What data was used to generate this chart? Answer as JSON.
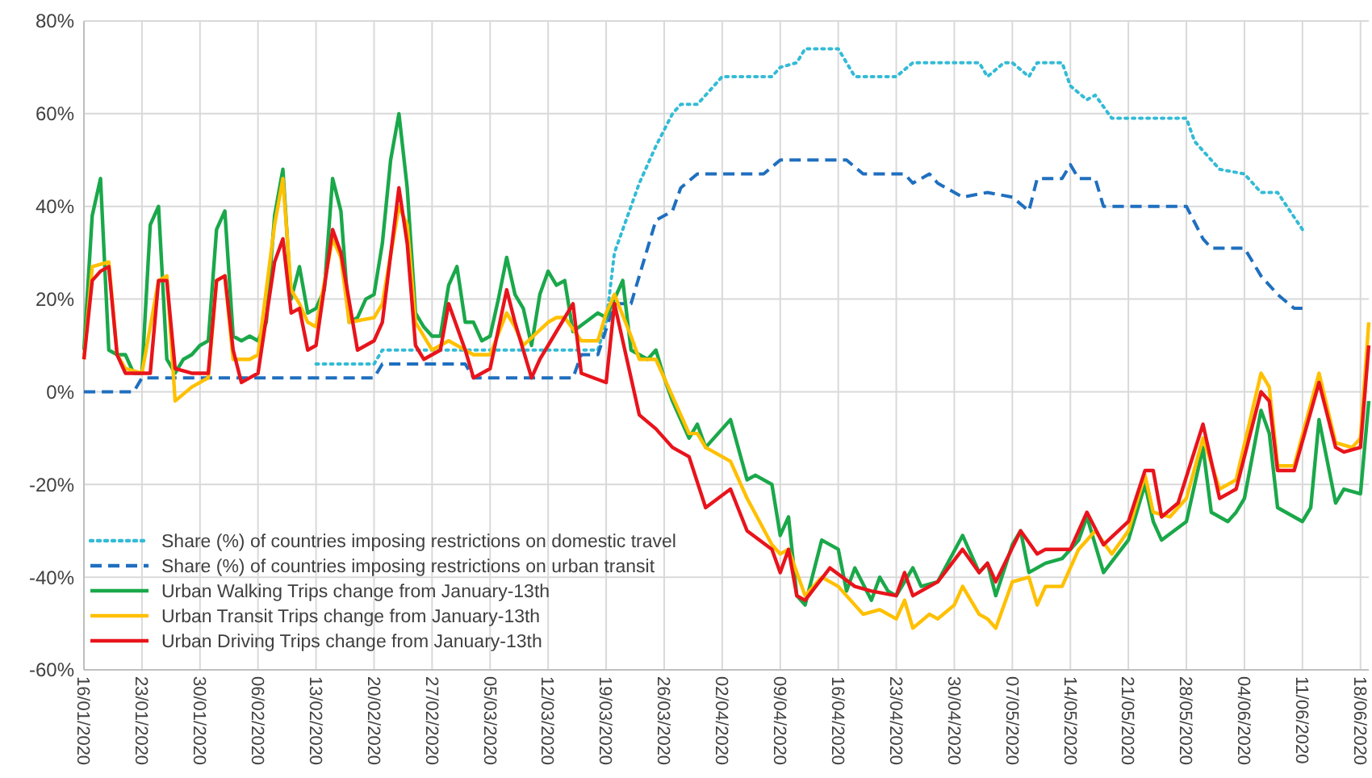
{
  "chart_data": {
    "type": "line",
    "xlim": [
      "2020-01-16",
      "2020-06-19"
    ],
    "ylim": [
      -60,
      80
    ],
    "xticks": [
      {
        "value": "2020-01-16",
        "label": "16/01/2020"
      },
      {
        "value": "2020-01-23",
        "label": "23/01/2020"
      },
      {
        "value": "2020-01-30",
        "label": "30/01/2020"
      },
      {
        "value": "2020-02-06",
        "label": "06/02/2020"
      },
      {
        "value": "2020-02-13",
        "label": "13/02/2020"
      },
      {
        "value": "2020-02-20",
        "label": "20/02/2020"
      },
      {
        "value": "2020-02-27",
        "label": "27/02/2020"
      },
      {
        "value": "2020-03-05",
        "label": "05/03/2020"
      },
      {
        "value": "2020-03-12",
        "label": "12/03/2020"
      },
      {
        "value": "2020-03-19",
        "label": "19/03/2020"
      },
      {
        "value": "2020-03-26",
        "label": "26/03/2020"
      },
      {
        "value": "2020-04-02",
        "label": "02/04/2020"
      },
      {
        "value": "2020-04-09",
        "label": "09/04/2020"
      },
      {
        "value": "2020-04-16",
        "label": "16/04/2020"
      },
      {
        "value": "2020-04-23",
        "label": "23/04/2020"
      },
      {
        "value": "2020-04-30",
        "label": "30/04/2020"
      },
      {
        "value": "2020-05-07",
        "label": "07/05/2020"
      },
      {
        "value": "2020-05-14",
        "label": "14/05/2020"
      },
      {
        "value": "2020-05-21",
        "label": "21/05/2020"
      },
      {
        "value": "2020-05-28",
        "label": "28/05/2020"
      },
      {
        "value": "2020-06-04",
        "label": "04/06/2020"
      },
      {
        "value": "2020-06-11",
        "label": "11/06/2020"
      },
      {
        "value": "2020-06-18",
        "label": "18/06/2020"
      }
    ],
    "yticks": [
      {
        "value": -60,
        "label": "-60%"
      },
      {
        "value": -40,
        "label": "-40%"
      },
      {
        "value": -20,
        "label": "-20%"
      },
      {
        "value": 0,
        "label": "0%"
      },
      {
        "value": 20,
        "label": "20%"
      },
      {
        "value": 40,
        "label": "40%"
      },
      {
        "value": 60,
        "label": "60%"
      },
      {
        "value": 80,
        "label": "80%"
      }
    ],
    "grid": true,
    "legend": "bottom left",
    "marker": "none",
    "series": [
      {
        "name": "Share (%) of countries imposing restrictions on domestic travel",
        "color": "#33bbd6",
        "line_style": "dotted",
        "x": [
          "2020-02-13",
          "2020-02-20",
          "2020-02-21",
          "2020-03-18",
          "2020-03-19",
          "2020-03-20",
          "2020-03-23",
          "2020-03-25",
          "2020-03-27",
          "2020-03-28",
          "2020-03-30",
          "2020-04-02",
          "2020-04-08",
          "2020-04-09",
          "2020-04-11",
          "2020-04-12",
          "2020-04-16",
          "2020-04-18",
          "2020-04-23",
          "2020-04-25",
          "2020-05-03",
          "2020-05-04",
          "2020-05-06",
          "2020-05-07",
          "2020-05-09",
          "2020-05-10",
          "2020-05-13",
          "2020-05-14",
          "2020-05-16",
          "2020-05-17",
          "2020-05-19",
          "2020-05-28",
          "2020-05-29",
          "2020-06-01",
          "2020-06-04",
          "2020-06-06",
          "2020-06-08",
          "2020-06-11"
        ],
        "values": [
          6,
          6,
          9,
          9,
          15,
          30,
          45,
          53,
          60,
          62,
          62,
          68,
          68,
          70,
          71,
          74,
          74,
          68,
          68,
          71,
          71,
          68,
          71,
          71,
          68,
          71,
          71,
          66,
          63,
          64,
          59,
          59,
          54,
          48,
          47,
          43,
          43,
          35
        ]
      },
      {
        "name": "Share (%) of countries imposing restrictions on urban transit",
        "color": "#1f6fbf",
        "line_style": "dashed",
        "x": [
          "2020-01-16",
          "2020-01-22",
          "2020-01-23",
          "2020-02-20",
          "2020-02-21",
          "2020-03-02",
          "2020-03-03",
          "2020-03-15",
          "2020-03-16",
          "2020-03-18",
          "2020-03-20",
          "2020-03-22",
          "2020-03-24",
          "2020-03-25",
          "2020-03-27",
          "2020-03-28",
          "2020-03-30",
          "2020-04-07",
          "2020-04-09",
          "2020-04-17",
          "2020-04-19",
          "2020-04-24",
          "2020-04-25",
          "2020-04-27",
          "2020-04-28",
          "2020-05-01",
          "2020-05-04",
          "2020-05-07",
          "2020-05-09",
          "2020-05-10",
          "2020-05-13",
          "2020-05-14",
          "2020-05-15",
          "2020-05-17",
          "2020-05-18",
          "2020-05-28",
          "2020-05-30",
          "2020-05-31",
          "2020-06-04",
          "2020-06-06",
          "2020-06-08",
          "2020-06-10",
          "2020-06-11"
        ],
        "values": [
          0,
          0,
          3,
          3,
          6,
          6,
          3,
          3,
          8,
          8,
          19,
          19,
          31,
          37,
          39,
          44,
          47,
          47,
          50,
          50,
          47,
          47,
          45,
          47,
          45,
          42,
          43,
          42,
          39,
          46,
          46,
          49,
          46,
          46,
          40,
          40,
          33,
          31,
          31,
          25,
          21,
          18,
          18
        ]
      },
      {
        "name": "Urban Walking Trips change from  January-13th",
        "color": "#1aa84a",
        "line_style": "solid",
        "x": [
          "2020-01-16",
          "2020-01-17",
          "2020-01-18",
          "2020-01-19",
          "2020-01-20",
          "2020-01-21",
          "2020-01-22",
          "2020-01-23",
          "2020-01-24",
          "2020-01-25",
          "2020-01-26",
          "2020-01-27",
          "2020-01-28",
          "2020-01-29",
          "2020-01-30",
          "2020-01-31",
          "2020-02-01",
          "2020-02-02",
          "2020-02-03",
          "2020-02-04",
          "2020-02-05",
          "2020-02-06",
          "2020-02-07",
          "2020-02-08",
          "2020-02-09",
          "2020-02-10",
          "2020-02-11",
          "2020-02-12",
          "2020-02-13",
          "2020-02-14",
          "2020-02-15",
          "2020-02-16",
          "2020-02-17",
          "2020-02-18",
          "2020-02-19",
          "2020-02-20",
          "2020-02-21",
          "2020-02-22",
          "2020-02-23",
          "2020-02-24",
          "2020-02-25",
          "2020-02-26",
          "2020-02-27",
          "2020-02-28",
          "2020-02-29",
          "2020-03-01",
          "2020-03-02",
          "2020-03-03",
          "2020-03-04",
          "2020-03-05",
          "2020-03-06",
          "2020-03-07",
          "2020-03-08",
          "2020-03-09",
          "2020-03-10",
          "2020-03-11",
          "2020-03-12",
          "2020-03-13",
          "2020-03-14",
          "2020-03-15",
          "2020-03-18",
          "2020-03-19",
          "2020-03-21",
          "2020-03-22",
          "2020-03-24",
          "2020-03-25",
          "2020-03-26",
          "2020-03-27",
          "2020-03-29",
          "2020-03-30",
          "2020-03-31",
          "2020-04-03",
          "2020-04-05",
          "2020-04-06",
          "2020-04-08",
          "2020-04-09",
          "2020-04-10",
          "2020-04-11",
          "2020-04-12",
          "2020-04-14",
          "2020-04-16",
          "2020-04-17",
          "2020-04-18",
          "2020-04-20",
          "2020-04-21",
          "2020-04-22",
          "2020-04-23",
          "2020-04-25",
          "2020-04-26",
          "2020-04-28",
          "2020-05-01",
          "2020-05-03",
          "2020-05-04",
          "2020-05-05",
          "2020-05-07",
          "2020-05-08",
          "2020-05-09",
          "2020-05-11",
          "2020-05-13",
          "2020-05-15",
          "2020-05-16",
          "2020-05-18",
          "2020-05-21",
          "2020-05-23",
          "2020-05-24",
          "2020-05-25",
          "2020-05-28",
          "2020-05-30",
          "2020-05-31",
          "2020-06-02",
          "2020-06-03",
          "2020-06-04",
          "2020-06-06",
          "2020-06-07",
          "2020-06-08",
          "2020-06-09",
          "2020-06-11",
          "2020-06-12",
          "2020-06-13",
          "2020-06-15",
          "2020-06-16",
          "2020-06-18",
          "2020-06-19"
        ],
        "values": [
          9,
          38,
          46,
          9,
          8,
          8,
          4,
          4,
          36,
          40,
          7,
          4,
          7,
          8,
          10,
          11,
          35,
          39,
          12,
          11,
          12,
          11,
          15,
          38,
          48,
          20,
          27,
          17,
          18,
          22,
          46,
          39,
          15,
          16,
          20,
          21,
          32,
          50,
          60,
          44,
          17,
          14,
          12,
          12,
          23,
          27,
          15,
          15,
          11,
          12,
          20,
          29,
          21,
          18,
          10,
          21,
          26,
          23,
          24,
          13,
          17,
          16,
          24,
          9,
          7,
          9,
          3,
          -2,
          -10,
          -7,
          -12,
          -6,
          -19,
          -18,
          -20,
          -31,
          -27,
          -44,
          -46,
          -32,
          -34,
          -43,
          -38,
          -45,
          -40,
          -43,
          -44,
          -38,
          -42,
          -41,
          -31,
          -39,
          -37,
          -44,
          -33,
          -30,
          -39,
          -37,
          -36,
          -32,
          -27,
          -39,
          -32,
          -20,
          -28,
          -32,
          -28,
          -12,
          -26,
          -28,
          -26,
          -23,
          -4,
          -9,
          -25,
          -26,
          -28,
          -25,
          -6,
          -24,
          -21,
          -22,
          -2
        ]
      },
      {
        "name": "Urban Transit Trips change from  January-13th",
        "color": "#ffc000",
        "line_style": "solid",
        "x": [
          "2020-01-16",
          "2020-01-17",
          "2020-01-19",
          "2020-01-20",
          "2020-01-21",
          "2020-01-23",
          "2020-01-25",
          "2020-01-26",
          "2020-01-27",
          "2020-01-29",
          "2020-01-31",
          "2020-02-01",
          "2020-02-02",
          "2020-02-03",
          "2020-02-05",
          "2020-02-06",
          "2020-02-08",
          "2020-02-09",
          "2020-02-10",
          "2020-02-11",
          "2020-02-12",
          "2020-02-13",
          "2020-02-15",
          "2020-02-16",
          "2020-02-17",
          "2020-02-20",
          "2020-02-21",
          "2020-02-23",
          "2020-02-24",
          "2020-02-25",
          "2020-02-27",
          "2020-02-29",
          "2020-03-02",
          "2020-03-03",
          "2020-03-05",
          "2020-03-07",
          "2020-03-08",
          "2020-03-09",
          "2020-03-12",
          "2020-03-13",
          "2020-03-14",
          "2020-03-16",
          "2020-03-18",
          "2020-03-19",
          "2020-03-20",
          "2020-03-22",
          "2020-03-23",
          "2020-03-25",
          "2020-03-27",
          "2020-03-29",
          "2020-03-30",
          "2020-03-31",
          "2020-04-03",
          "2020-04-05",
          "2020-04-08",
          "2020-04-09",
          "2020-04-10",
          "2020-04-12",
          "2020-04-13",
          "2020-04-14",
          "2020-04-16",
          "2020-04-18",
          "2020-04-19",
          "2020-04-21",
          "2020-04-23",
          "2020-04-24",
          "2020-04-25",
          "2020-04-27",
          "2020-04-28",
          "2020-04-30",
          "2020-05-01",
          "2020-05-03",
          "2020-05-04",
          "2020-05-05",
          "2020-05-07",
          "2020-05-09",
          "2020-05-10",
          "2020-05-11",
          "2020-05-13",
          "2020-05-15",
          "2020-05-17",
          "2020-05-19",
          "2020-05-21",
          "2020-05-23",
          "2020-05-24",
          "2020-05-26",
          "2020-05-28",
          "2020-05-30",
          "2020-06-01",
          "2020-06-03",
          "2020-06-06",
          "2020-06-07",
          "2020-06-08",
          "2020-06-10",
          "2020-06-13",
          "2020-06-15",
          "2020-06-17",
          "2020-06-18",
          "2020-06-19"
        ],
        "values": [
          7,
          27,
          28,
          8,
          5,
          4,
          24,
          25,
          -2,
          1,
          3,
          24,
          25,
          7,
          7,
          8,
          36,
          46,
          22,
          19,
          15,
          14,
          33,
          29,
          15,
          16,
          19,
          40,
          36,
          15,
          9,
          11,
          9,
          8,
          8,
          17,
          14,
          10,
          15,
          16,
          16,
          11,
          11,
          17,
          21,
          12,
          7,
          7,
          -1,
          -9,
          -9,
          -12,
          -15,
          -23,
          -33,
          -35,
          -34,
          -44,
          -42,
          -40,
          -42,
          -46,
          -48,
          -47,
          -49,
          -45,
          -51,
          -48,
          -49,
          -46,
          -42,
          -48,
          -49,
          -51,
          -41,
          -40,
          -46,
          -42,
          -42,
          -34,
          -30,
          -35,
          -30,
          -18,
          -26,
          -27,
          -23,
          -10,
          -21,
          -19,
          4,
          1,
          -16,
          -16,
          4,
          -11,
          -12,
          -10,
          15
        ]
      },
      {
        "name": "Urban Driving Trips change from  January-13th",
        "color": "#e8141c",
        "line_style": "solid",
        "x": [
          "2020-01-16",
          "2020-01-17",
          "2020-01-18",
          "2020-01-19",
          "2020-01-20",
          "2020-01-21",
          "2020-01-23",
          "2020-01-24",
          "2020-01-25",
          "2020-01-26",
          "2020-01-27",
          "2020-01-29",
          "2020-01-31",
          "2020-02-01",
          "2020-02-02",
          "2020-02-03",
          "2020-02-04",
          "2020-02-05",
          "2020-02-06",
          "2020-02-08",
          "2020-02-09",
          "2020-02-10",
          "2020-02-11",
          "2020-02-12",
          "2020-02-13",
          "2020-02-15",
          "2020-02-16",
          "2020-02-18",
          "2020-02-20",
          "2020-02-21",
          "2020-02-23",
          "2020-02-24",
          "2020-02-25",
          "2020-02-26",
          "2020-02-28",
          "2020-02-29",
          "2020-03-02",
          "2020-03-03",
          "2020-03-05",
          "2020-03-07",
          "2020-03-08",
          "2020-03-10",
          "2020-03-11",
          "2020-03-12",
          "2020-03-15",
          "2020-03-16",
          "2020-03-19",
          "2020-03-20",
          "2020-03-23",
          "2020-03-25",
          "2020-03-27",
          "2020-03-29",
          "2020-03-31",
          "2020-04-03",
          "2020-04-05",
          "2020-04-08",
          "2020-04-09",
          "2020-04-10",
          "2020-04-11",
          "2020-04-12",
          "2020-04-15",
          "2020-04-18",
          "2020-04-20",
          "2020-04-23",
          "2020-04-24",
          "2020-04-25",
          "2020-04-28",
          "2020-05-01",
          "2020-05-03",
          "2020-05-04",
          "2020-05-05",
          "2020-05-08",
          "2020-05-10",
          "2020-05-11",
          "2020-05-14",
          "2020-05-16",
          "2020-05-18",
          "2020-05-21",
          "2020-05-23",
          "2020-05-24",
          "2020-05-25",
          "2020-05-27",
          "2020-05-30",
          "2020-06-01",
          "2020-06-03",
          "2020-06-06",
          "2020-06-07",
          "2020-06-08",
          "2020-06-10",
          "2020-06-13",
          "2020-06-15",
          "2020-06-16",
          "2020-06-18",
          "2020-06-19"
        ],
        "values": [
          7,
          24,
          26,
          27,
          8,
          4,
          4,
          4,
          24,
          24,
          5,
          4,
          4,
          24,
          25,
          9,
          2,
          3,
          4,
          28,
          33,
          17,
          18,
          9,
          10,
          35,
          30,
          9,
          11,
          15,
          44,
          32,
          10,
          7,
          9,
          19,
          9,
          3,
          5,
          22,
          15,
          3,
          7,
          10,
          19,
          4,
          2,
          19,
          -5,
          -8,
          -12,
          -14,
          -25,
          -21,
          -30,
          -34,
          -39,
          -34,
          -44,
          -45,
          -38,
          -42,
          -43,
          -44,
          -39,
          -44,
          -41,
          -34,
          -39,
          -37,
          -41,
          -30,
          -35,
          -34,
          -34,
          -26,
          -33,
          -28,
          -17,
          -17,
          -27,
          -24,
          -7,
          -23,
          -21,
          0,
          -2,
          -17,
          -17,
          2,
          -12,
          -13,
          -12,
          10
        ]
      }
    ]
  }
}
